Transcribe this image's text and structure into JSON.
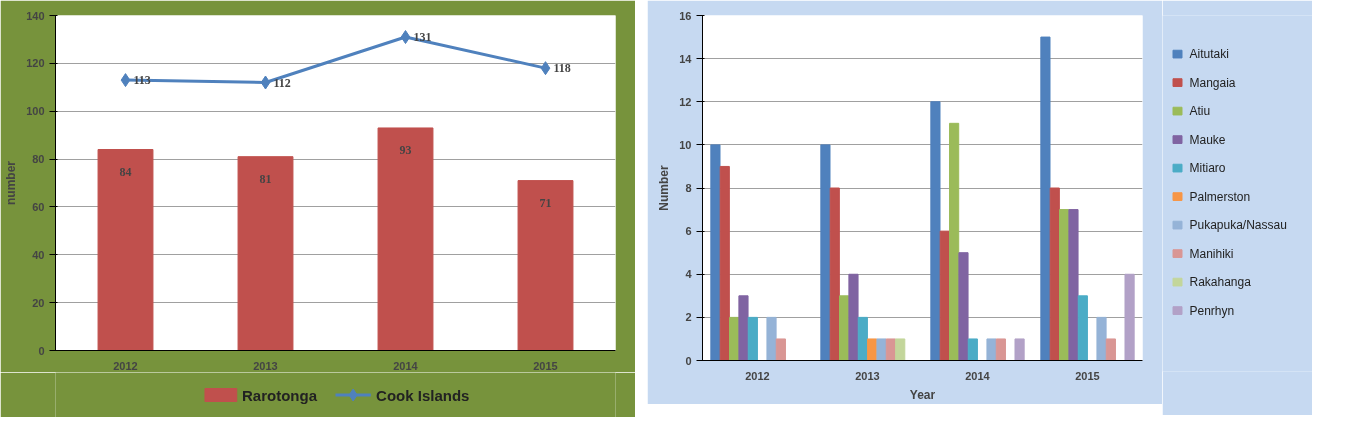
{
  "chart_data": [
    {
      "type": "bar",
      "categories": [
        "2012",
        "2013",
        "2014",
        "2015"
      ],
      "ylabel": "number",
      "ylim": [
        0,
        140
      ],
      "yticks": [
        0,
        20,
        40,
        60,
        80,
        100,
        120,
        140
      ],
      "grid": "y",
      "legend": "bottom",
      "data_labels": true,
      "marker": "diamond",
      "series": [
        {
          "name": "Rarotonga",
          "type": "bar",
          "color": "#c0504d",
          "values": [
            84,
            81,
            93,
            71
          ]
        },
        {
          "name": "Cook Islands",
          "type": "line",
          "color": "#4f81bd",
          "values": [
            113,
            112,
            131,
            118
          ]
        }
      ]
    },
    {
      "type": "bar",
      "categories": [
        "2012",
        "2013",
        "2014",
        "2015"
      ],
      "xlabel": "Year",
      "ylabel": "Number",
      "ylim": [
        0,
        16
      ],
      "yticks": [
        0,
        2,
        4,
        6,
        8,
        10,
        12,
        14,
        16
      ],
      "grid": "y",
      "legend": "right",
      "series": [
        {
          "name": "Aitutaki",
          "color": "#4f81bd",
          "values": [
            10,
            10,
            12,
            15
          ]
        },
        {
          "name": "Mangaia",
          "color": "#c0504d",
          "values": [
            9,
            8,
            6,
            8
          ]
        },
        {
          "name": "Atiu",
          "color": "#9bbb59",
          "values": [
            2,
            3,
            11,
            7
          ]
        },
        {
          "name": "Mauke",
          "color": "#8064a2",
          "values": [
            3,
            4,
            5,
            7
          ]
        },
        {
          "name": "Mitiaro",
          "color": "#4bacc6",
          "values": [
            2,
            2,
            1,
            3
          ]
        },
        {
          "name": "Palmerston",
          "color": "#f79646",
          "values": [
            0,
            1,
            0,
            0
          ]
        },
        {
          "name": "Pukapuka/Nassau",
          "color": "#95b3d7",
          "values": [
            2,
            1,
            1,
            2
          ]
        },
        {
          "name": "Manihiki",
          "color": "#d99694",
          "values": [
            1,
            1,
            1,
            1
          ]
        },
        {
          "name": "Rakahanga",
          "color": "#c3d69b",
          "values": [
            0,
            1,
            0,
            0
          ]
        },
        {
          "name": "Penrhyn",
          "color": "#b2a1c7",
          "values": [
            0,
            0,
            1,
            4
          ]
        }
      ]
    }
  ]
}
